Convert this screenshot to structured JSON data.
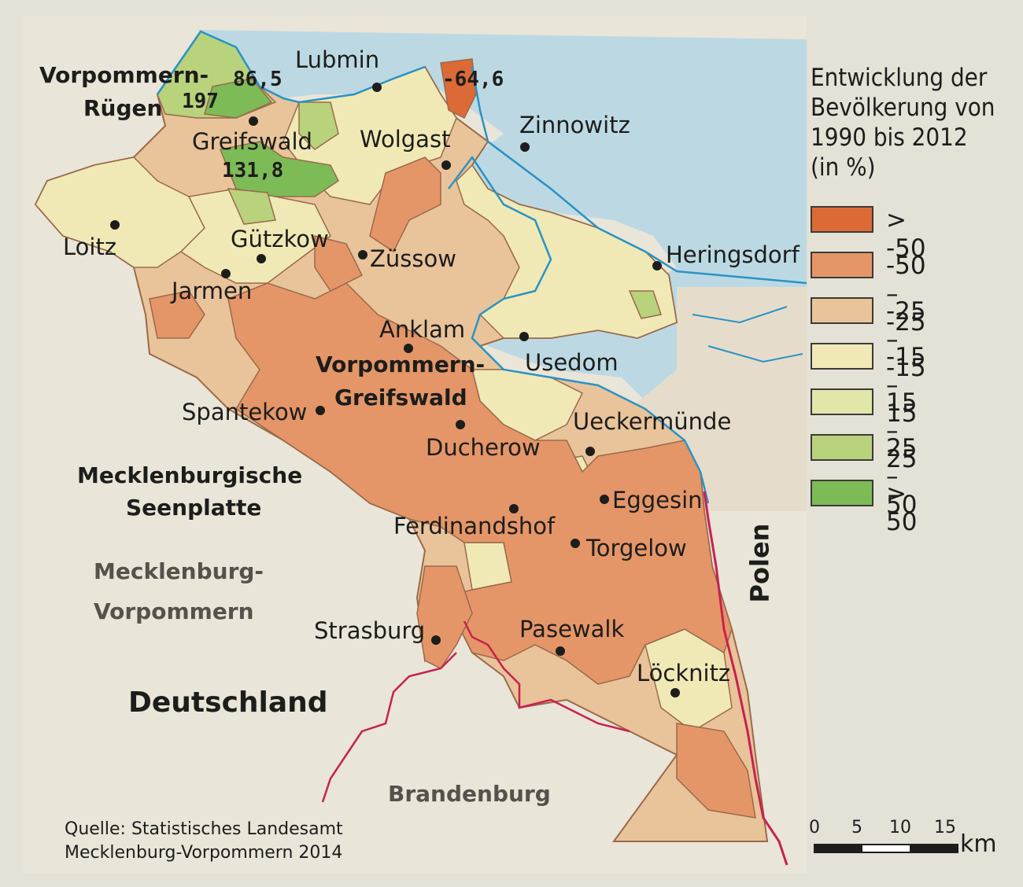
{
  "map": {
    "places": [
      {
        "id": "lubmin",
        "name": "Lubmin"
      },
      {
        "id": "zinnowitz",
        "name": "Zinnowitz"
      },
      {
        "id": "greifswald",
        "name": "Greifswald"
      },
      {
        "id": "wolgast",
        "name": "Wolgast"
      },
      {
        "id": "loitz",
        "name": "Loitz"
      },
      {
        "id": "guetzkow",
        "name": "Gützkow"
      },
      {
        "id": "zuessow",
        "name": "Züssow"
      },
      {
        "id": "jarmen",
        "name": "Jarmen"
      },
      {
        "id": "heringsdorf",
        "name": "Heringsdorf"
      },
      {
        "id": "anklam",
        "name": "Anklam"
      },
      {
        "id": "usedom",
        "name": "Usedom"
      },
      {
        "id": "spantekow",
        "name": "Spantekow"
      },
      {
        "id": "ducherow",
        "name": "Ducherow"
      },
      {
        "id": "ueckermuende",
        "name": "Ueckermünde"
      },
      {
        "id": "eggesin",
        "name": "Eggesin"
      },
      {
        "id": "ferdinandshof",
        "name": "Ferdinandshof"
      },
      {
        "id": "torgelow",
        "name": "Torgelow"
      },
      {
        "id": "strasburg",
        "name": "Strasburg"
      },
      {
        "id": "pasewalk",
        "name": "Pasewalk"
      },
      {
        "id": "loecknitz",
        "name": "Löcknitz"
      }
    ],
    "regions": {
      "vorpommern_ruegen": [
        "Vorpommern-",
        "Rügen"
      ],
      "vorpommern_greifswald": [
        "Vorpommern-",
        "Greifswald"
      ],
      "seenplatte": [
        "Mecklenburgische",
        "Seenplatte"
      ],
      "mv": [
        "Mecklenburg-",
        "Vorpommern"
      ],
      "deutschland": "Deutschland",
      "brandenburg": "Brandenburg",
      "polen": "Polen"
    },
    "values": {
      "v865": "86,5",
      "v197": "197",
      "v1318": "131,8",
      "v646": "-64,6"
    },
    "colors": {
      "sea": "#bcd9e3",
      "coast": "#2a93c5",
      "border": "#c8214e",
      "outside": "#e9e5d8",
      "district_line": "#9a6a4a"
    }
  },
  "legend": {
    "title": [
      "Entwicklung der",
      "Bevölkerung von",
      "1990 bis 2012",
      "(in %)"
    ],
    "classes": [
      {
        "label": "> -50",
        "color": "#dc6a36"
      },
      {
        "label": "-50 – -25",
        "color": "#e49668"
      },
      {
        "label": "-25 – -15",
        "color": "#e9c39a"
      },
      {
        "label": "-15 – 15",
        "color": "#f0e9b6"
      },
      {
        "label": "15 – 25",
        "color": "#e2e6a8"
      },
      {
        "label": "25 – 50",
        "color": "#b9d27c"
      },
      {
        "label": "> 50",
        "color": "#7dbb57"
      }
    ]
  },
  "source": [
    "Quelle: Statistisches Landesamt",
    "Mecklenburg-Vorpommern 2014"
  ],
  "scalebar": {
    "ticks": [
      "0",
      "5",
      "10",
      "15"
    ],
    "unit": "km"
  }
}
